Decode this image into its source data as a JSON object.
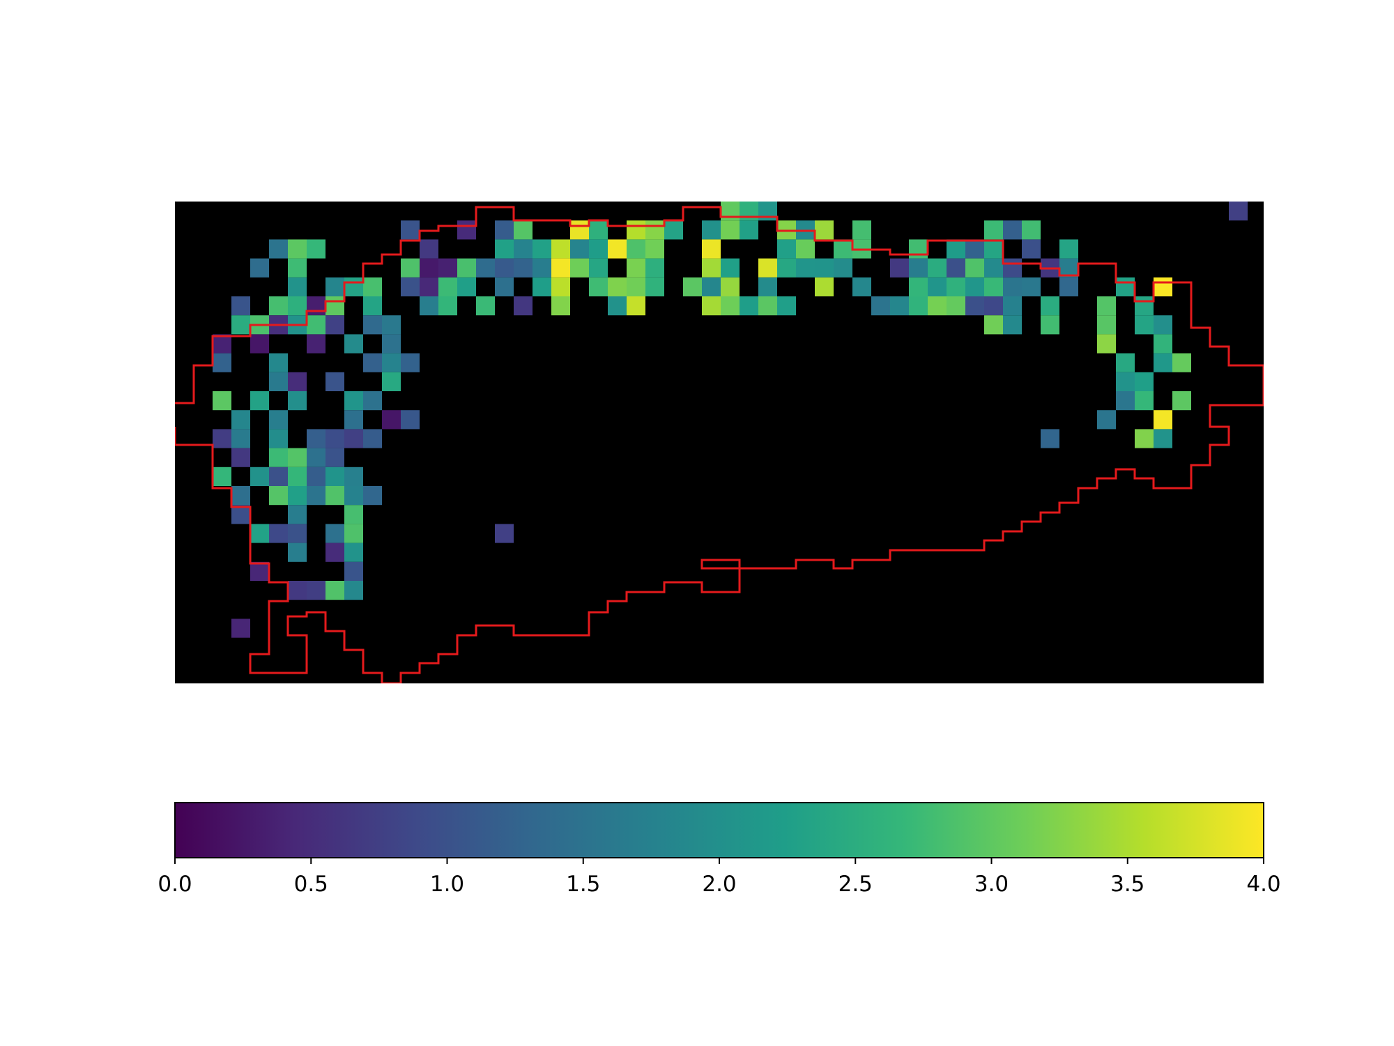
{
  "chart_data": [
    {
      "type": "heatmap",
      "title": "",
      "xlabel": "",
      "ylabel": "",
      "axes_visible": false,
      "colormap": "viridis",
      "background_color": "#000000",
      "outline_color": "#e41a1c",
      "grid": false,
      "note_values": "pixel-grid heat values estimated from colour; 0 = background (black)"
    },
    {
      "type": "colorbar",
      "orientation": "horizontal",
      "range": [
        0.0,
        4.0
      ],
      "ticks": [
        "0.0",
        "0.5",
        "1.0",
        "1.5",
        "2.0",
        "2.5",
        "3.0",
        "3.5",
        "4.0"
      ],
      "colormap_stops": [
        "#440154",
        "#482878",
        "#3e4989",
        "#31688e",
        "#26828e",
        "#1f9e89",
        "#35b779",
        "#6ece58",
        "#b5de2b",
        "#fde725"
      ]
    }
  ]
}
